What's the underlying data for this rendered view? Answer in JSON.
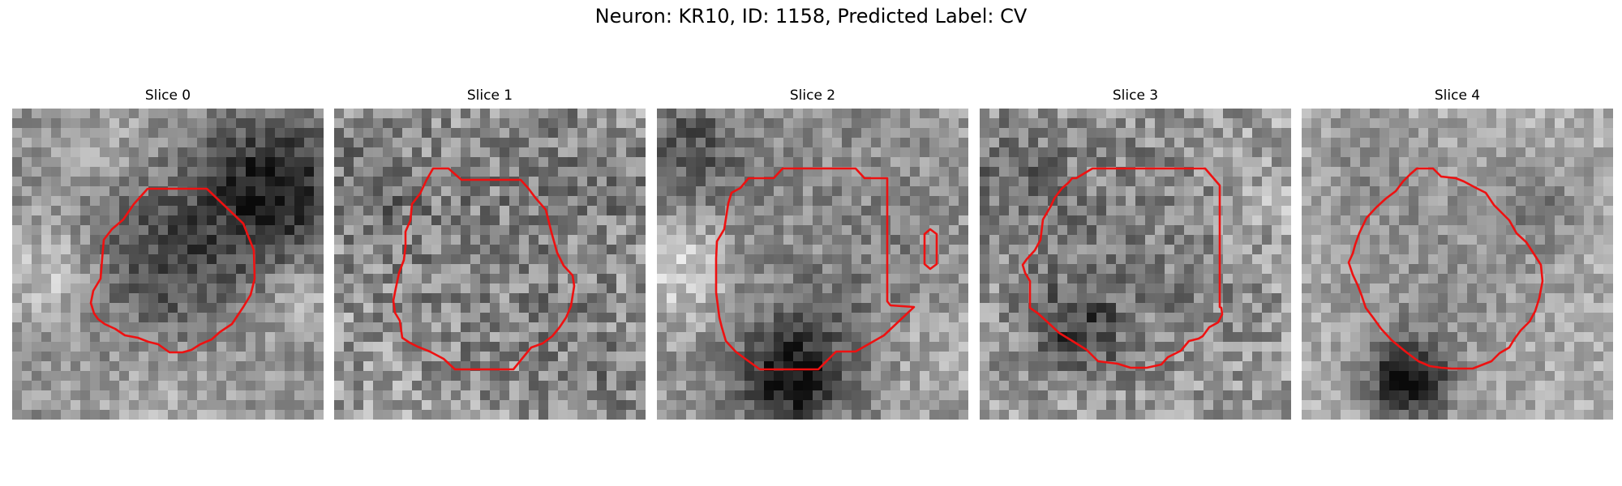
{
  "figure": {
    "title": "Neuron: KR10, ID: 1158, Predicted Label: CV"
  },
  "panels": [
    {
      "title": "Slice 0"
    },
    {
      "title": "Slice 1"
    },
    {
      "title": "Slice 2"
    },
    {
      "title": "Slice 3"
    },
    {
      "title": "Slice 4"
    }
  ],
  "colors": {
    "contour": "#ee1111",
    "colormap": "grayscale"
  }
}
